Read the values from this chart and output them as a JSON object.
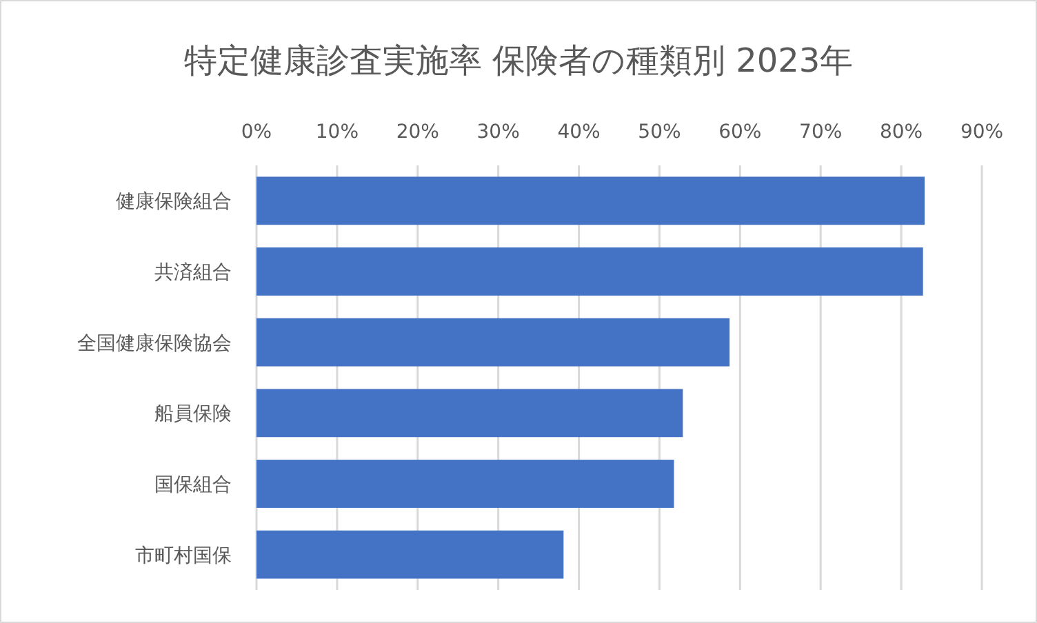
{
  "chart_data": {
    "type": "bar",
    "orientation": "horizontal",
    "title": "特定健康診査実施率 保険者の種類別 2023年",
    "categories": [
      "健康保険組合",
      "共済組合",
      "全国健康保険協会",
      "船員保険",
      "国保組合",
      "市町村国保"
    ],
    "values": [
      82.9,
      82.7,
      58.7,
      52.9,
      51.8,
      38.1
    ],
    "color": "#4472c4",
    "xlim": [
      0,
      90
    ],
    "xticks": [
      {
        "value": 0,
        "label": "0%"
      },
      {
        "value": 10,
        "label": "10%"
      },
      {
        "value": 20,
        "label": "20%"
      },
      {
        "value": 30,
        "label": "30%"
      },
      {
        "value": 40,
        "label": "40%"
      },
      {
        "value": 50,
        "label": "50%"
      },
      {
        "value": 60,
        "label": "60%"
      },
      {
        "value": 70,
        "label": "70%"
      },
      {
        "value": 80,
        "label": "80%"
      },
      {
        "value": 90,
        "label": "90%"
      }
    ],
    "grid": "x"
  }
}
